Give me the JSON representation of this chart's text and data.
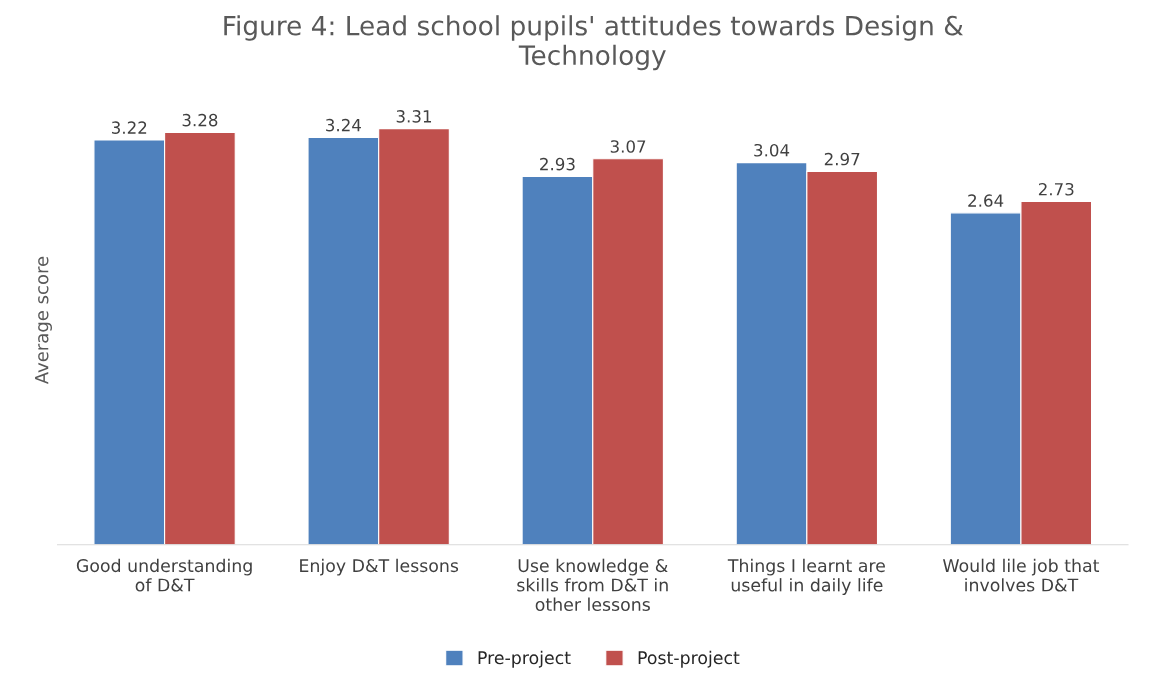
{
  "chart_data": {
    "type": "bar",
    "title": "Figure 4: Lead school pupils' attitudes towards Design &\nTechnology",
    "ylabel": "Average score",
    "categories": [
      "Good understanding\nof D&T",
      "Enjoy D&T lessons",
      "Use knowledge &\nskills from D&T in\nother lessons",
      "Things I learnt are\nuseful in daily life",
      "Would lile job that\ninvolves D&T"
    ],
    "series": [
      {
        "name": "Pre-project",
        "color": "#4f81bd",
        "values": [
          3.22,
          3.24,
          2.93,
          3.04,
          2.64
        ]
      },
      {
        "name": "Post-project",
        "color": "#c0504d",
        "values": [
          3.28,
          3.31,
          3.07,
          2.97,
          2.73
        ]
      }
    ],
    "data_labels": true,
    "legend": "bottom",
    "grid": false
  }
}
